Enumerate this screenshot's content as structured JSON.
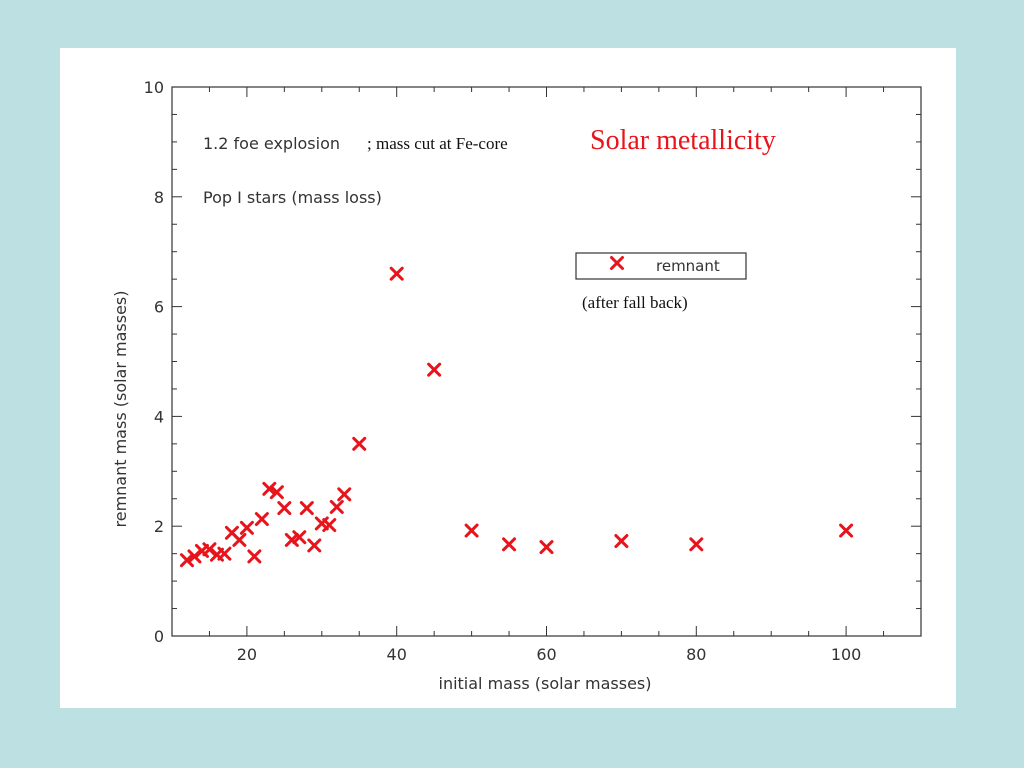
{
  "chart_data": {
    "type": "scatter",
    "title": "Solar metallicity",
    "title_color": "#e8141c",
    "annotations": {
      "explosion": "1.2 foe explosion",
      "mass_cut": "; mass cut at Fe-core",
      "population": "Pop I stars (mass loss)",
      "after_fall_back": "(after fall back)"
    },
    "xlabel": "initial mass (solar masses)",
    "ylabel": "remnant mass (solar masses)",
    "xlim": [
      10,
      110
    ],
    "ylim": [
      0,
      10
    ],
    "x_ticks": [
      20,
      40,
      60,
      80,
      100
    ],
    "y_ticks": [
      0,
      2,
      4,
      6,
      8,
      10
    ],
    "grid": false,
    "legend": {
      "position": "top-right",
      "entries": [
        "remnant"
      ]
    },
    "marker_color": "#e8141c",
    "series": [
      {
        "name": "remnant",
        "points": [
          [
            12,
            1.38
          ],
          [
            13,
            1.45
          ],
          [
            14,
            1.55
          ],
          [
            15,
            1.58
          ],
          [
            16,
            1.48
          ],
          [
            17,
            1.5
          ],
          [
            18,
            1.88
          ],
          [
            19,
            1.75
          ],
          [
            20,
            1.97
          ],
          [
            21,
            1.45
          ],
          [
            22,
            2.13
          ],
          [
            23,
            2.68
          ],
          [
            24,
            2.62
          ],
          [
            25,
            2.33
          ],
          [
            26,
            1.75
          ],
          [
            27,
            1.8
          ],
          [
            28,
            2.33
          ],
          [
            29,
            1.65
          ],
          [
            30,
            2.05
          ],
          [
            31,
            2.02
          ],
          [
            32,
            2.35
          ],
          [
            33,
            2.58
          ],
          [
            35,
            3.5
          ],
          [
            40,
            6.6
          ],
          [
            45,
            4.85
          ],
          [
            50,
            1.92
          ],
          [
            55,
            1.67
          ],
          [
            60,
            1.62
          ],
          [
            70,
            1.73
          ],
          [
            80,
            1.67
          ],
          [
            100,
            1.92
          ]
        ]
      }
    ]
  }
}
